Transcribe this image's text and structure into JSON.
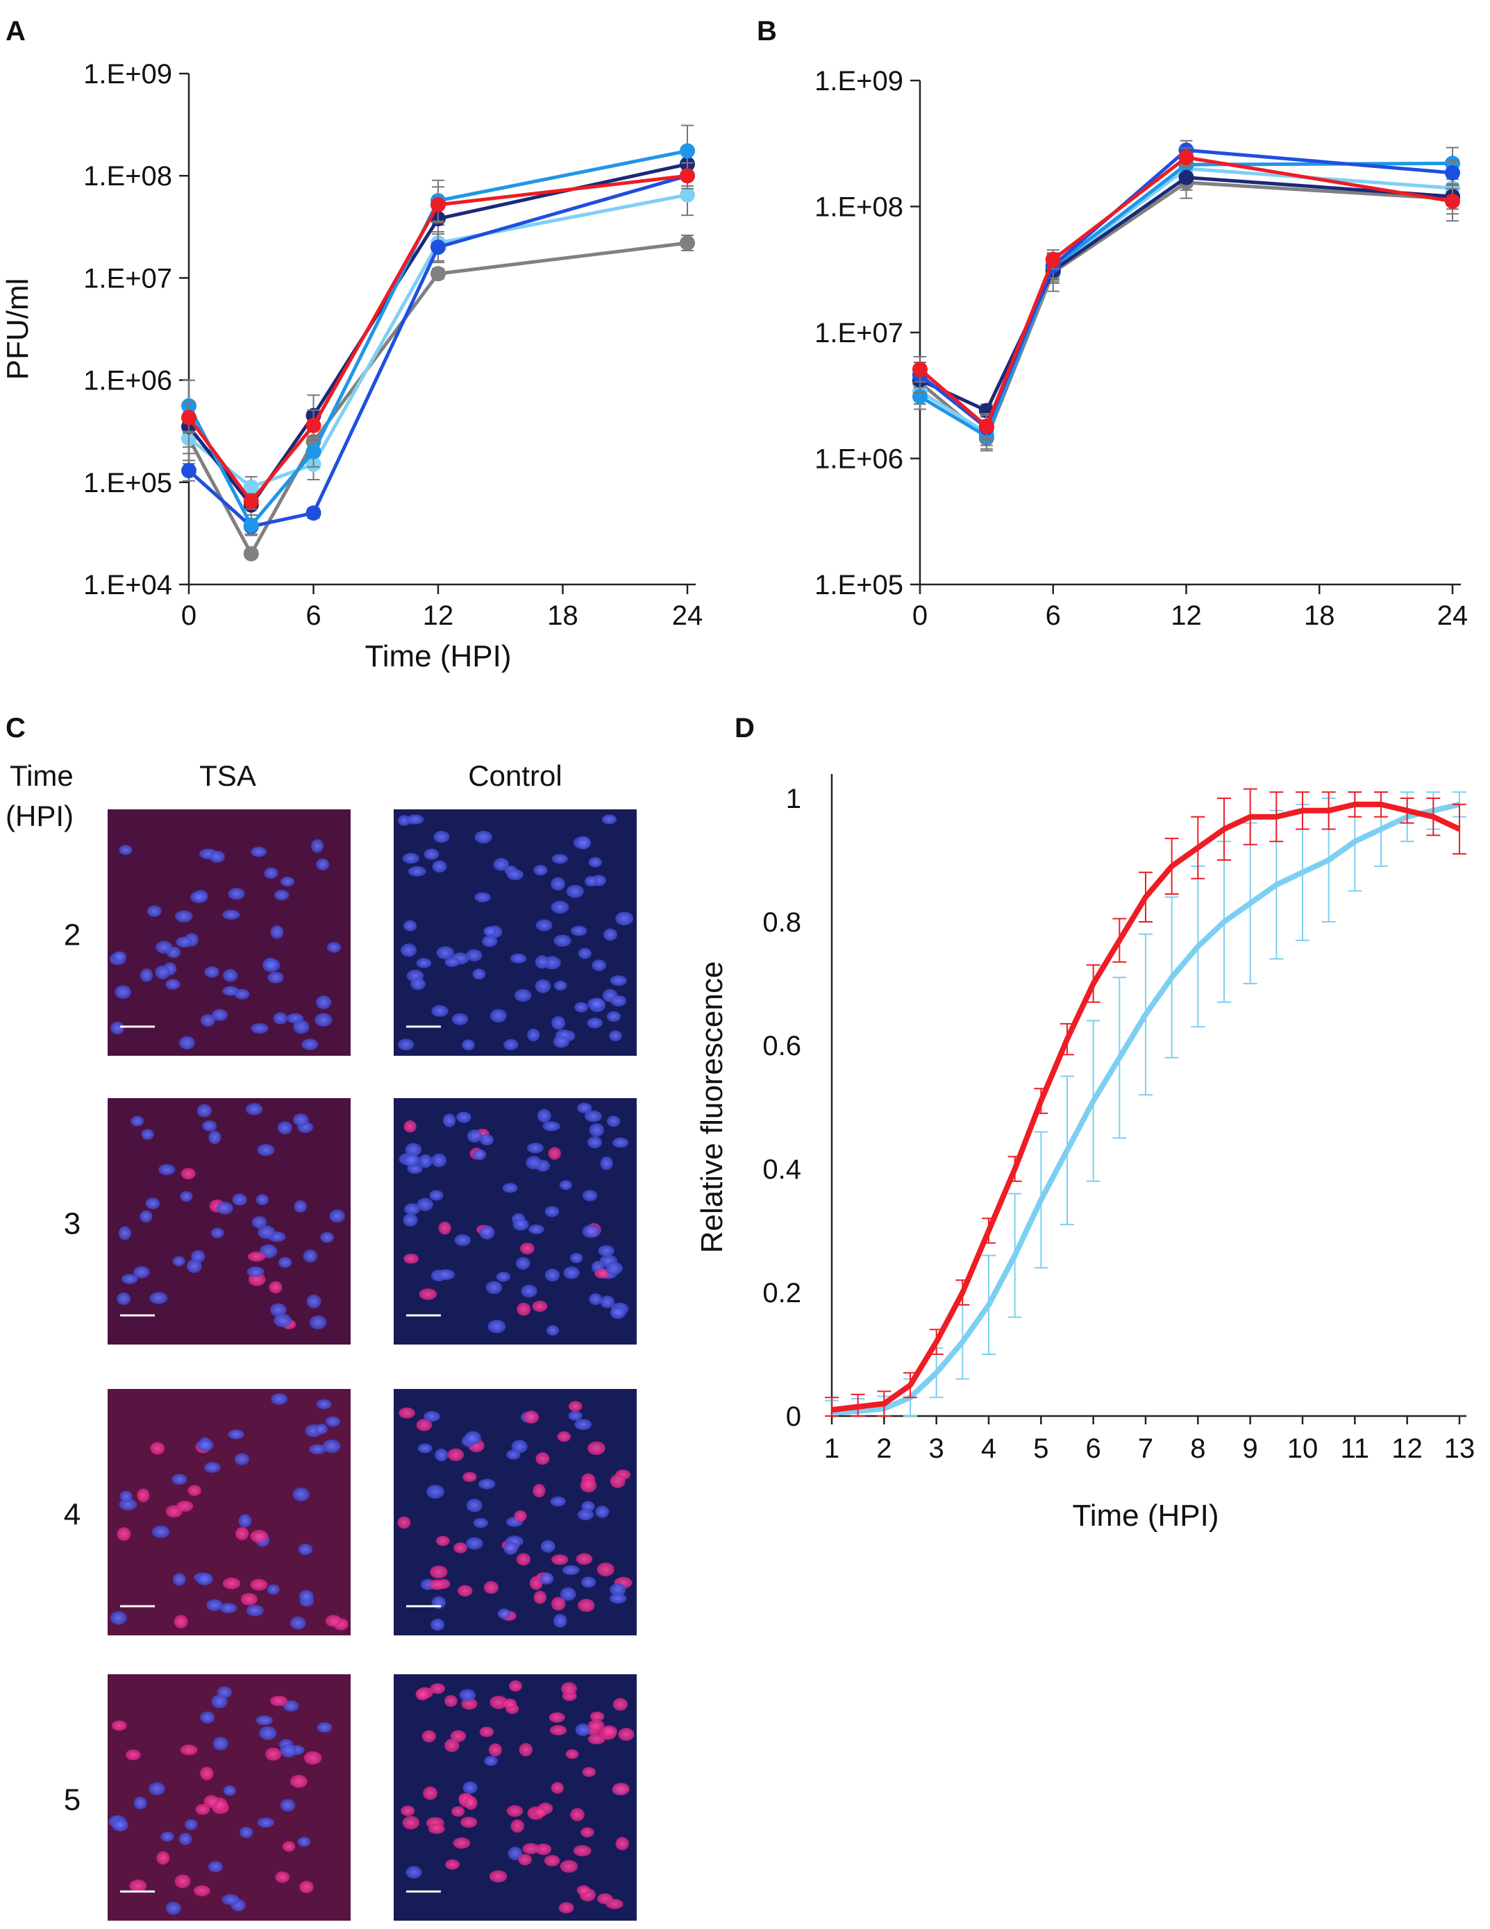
{
  "colors": {
    "red": "#ee1c24",
    "navy": "#1a2a78",
    "royal": "#1f4fe0",
    "sky": "#1f96e8",
    "light": "#7fd0f5",
    "gray": "#808080",
    "tsa_series": "#ee1c24",
    "control_series": "#7ccff2"
  },
  "panels": {
    "a": {
      "letter": "A"
    },
    "b": {
      "letter": "B"
    },
    "c": {
      "letter": "C"
    },
    "d": {
      "letter": "D"
    }
  },
  "micrographs": {
    "row_header": "Time",
    "row_header_units": "(HPI)",
    "col_tsa": "TSA",
    "col_control": "Control",
    "rows": [
      "2",
      "3",
      "4",
      "5"
    ],
    "red_fraction_tsa": [
      0.0,
      0.1,
      0.3,
      0.55
    ],
    "red_fraction_control": [
      0.0,
      0.2,
      0.6,
      0.85
    ]
  },
  "chart_data": [
    {
      "id": "A",
      "type": "line",
      "title": "",
      "xlabel": "Time (HPI)",
      "ylabel": "PFU/ml",
      "yscale": "log",
      "ylim": [
        10000,
        1000000000
      ],
      "xlim": [
        0,
        24
      ],
      "xticks": [
        "0",
        "6",
        "12",
        "18",
        "24"
      ],
      "yticks": [
        "1.E+04",
        "1.E+05",
        "1.E+06",
        "1.E+07",
        "1.E+08",
        "1.E+09"
      ],
      "x": [
        0,
        3,
        6,
        12,
        24
      ],
      "series": [
        {
          "name": "gray",
          "color": "#808080",
          "values": [
            270000,
            20000,
            250000,
            11000000,
            22000000
          ],
          "err": [
            0.3,
            0.08,
            0.45,
            0.1,
            0.15
          ]
        },
        {
          "name": "light blue",
          "color": "#7fd0f5",
          "values": [
            270000,
            90000,
            150000,
            22000000,
            65000000
          ],
          "err": [
            0.5,
            0.2,
            0.3,
            0.35,
            0.4
          ]
        },
        {
          "name": "royal blue",
          "color": "#1f4fe0",
          "values": [
            130000,
            37000,
            50000,
            20000000,
            100000000
          ],
          "err": [
            0.2,
            0.15,
            0.1,
            0.3,
            0.2
          ]
        },
        {
          "name": "navy",
          "color": "#1a2a78",
          "values": [
            350000,
            60000,
            450000,
            38000000,
            130000000
          ],
          "err": [
            0.4,
            0.2,
            0.4,
            0.3,
            0.3
          ]
        },
        {
          "name": "sky blue",
          "color": "#1f96e8",
          "values": [
            560000,
            38000,
            200000,
            57000000,
            175000000
          ],
          "err": [
            0.5,
            0.2,
            0.3,
            0.4,
            0.5
          ]
        },
        {
          "name": "red",
          "color": "#ee1c24",
          "values": [
            430000,
            65000,
            360000,
            52000000,
            100000000
          ],
          "err": [
            0.3,
            0.15,
            0.3,
            0.35,
            0.25
          ]
        }
      ]
    },
    {
      "id": "B",
      "type": "line",
      "title": "",
      "xlabel": "",
      "ylabel": "",
      "yscale": "log",
      "ylim": [
        100000,
        1000000000
      ],
      "xlim": [
        0,
        24
      ],
      "xticks": [
        "0",
        "6",
        "12",
        "18",
        "24"
      ],
      "yticks": [
        "1.E+05",
        "1.E+06",
        "1.E+07",
        "1.E+08",
        "1.E+09"
      ],
      "x": [
        0,
        3,
        6,
        12,
        24
      ],
      "series": [
        {
          "name": "gray",
          "color": "#808080",
          "values": [
            4000000,
            1450000,
            30000000,
            155000000,
            115000000
          ],
          "err": [
            0.25,
            0.2,
            0.3,
            0.25,
            0.35
          ]
        },
        {
          "name": "light blue",
          "color": "#7fd0f5",
          "values": [
            3400000,
            1600000,
            32000000,
            200000000,
            140000000
          ],
          "err": [
            0.2,
            0.2,
            0.2,
            0.2,
            0.25
          ]
        },
        {
          "name": "sky blue",
          "color": "#1f96e8",
          "values": [
            3100000,
            1500000,
            33000000,
            215000000,
            220000000
          ],
          "err": [
            0.2,
            0.2,
            0.2,
            0.2,
            0.25
          ]
        },
        {
          "name": "navy",
          "color": "#1a2a78",
          "values": [
            4200000,
            2400000,
            31000000,
            170000000,
            120000000
          ],
          "err": [
            0.2,
            0.1,
            0.2,
            0.2,
            0.2
          ]
        },
        {
          "name": "royal blue",
          "color": "#1f4fe0",
          "values": [
            4600000,
            1750000,
            34000000,
            280000000,
            185000000
          ],
          "err": [
            0.2,
            0.2,
            0.2,
            0.15,
            0.2
          ]
        },
        {
          "name": "red",
          "color": "#ee1c24",
          "values": [
            5100000,
            1800000,
            38000000,
            245000000,
            110000000
          ],
          "err": [
            0.2,
            0.2,
            0.15,
            0.15,
            0.2
          ]
        }
      ]
    },
    {
      "id": "D",
      "type": "line",
      "title": "",
      "xlabel": "Time (HPI)",
      "ylabel": "Relative fluorescence",
      "ylim": [
        0,
        1
      ],
      "xlim": [
        1,
        13
      ],
      "xticks": [
        "1",
        "2",
        "3",
        "4",
        "5",
        "6",
        "7",
        "8",
        "9",
        "10",
        "11",
        "12",
        "13"
      ],
      "yticks": [
        "0",
        "0.2",
        "0.4",
        "0.6",
        "0.8",
        "1"
      ],
      "series": [
        {
          "name": "TSA",
          "color": "#ee1c24",
          "x": [
            1,
            1.5,
            2,
            2.5,
            3,
            3.5,
            4,
            4.5,
            5,
            5.5,
            6,
            6.5,
            7,
            7.5,
            8,
            8.5,
            9,
            9.5,
            10,
            10.5,
            11,
            11.5,
            12,
            12.5,
            13
          ],
          "values": [
            0.01,
            0.015,
            0.02,
            0.05,
            0.12,
            0.2,
            0.3,
            0.4,
            0.51,
            0.61,
            0.7,
            0.77,
            0.84,
            0.89,
            0.92,
            0.95,
            0.97,
            0.97,
            0.98,
            0.98,
            0.99,
            0.99,
            0.98,
            0.97,
            0.95
          ],
          "err": [
            0.02,
            0.02,
            0.02,
            0.02,
            0.02,
            0.02,
            0.02,
            0.02,
            0.02,
            0.025,
            0.03,
            0.035,
            0.04,
            0.045,
            0.05,
            0.05,
            0.045,
            0.04,
            0.03,
            0.03,
            0.02,
            0.02,
            0.02,
            0.03,
            0.04
          ]
        },
        {
          "name": "Control",
          "color": "#7ccff2",
          "x": [
            1,
            1.5,
            2,
            2.5,
            3,
            3.5,
            4,
            4.5,
            5,
            5.5,
            6,
            6.5,
            7,
            7.5,
            8,
            8.5,
            9,
            9.5,
            10,
            10.5,
            11,
            11.5,
            12,
            12.5,
            13
          ],
          "values": [
            0.005,
            0.008,
            0.012,
            0.03,
            0.07,
            0.12,
            0.18,
            0.26,
            0.35,
            0.43,
            0.51,
            0.58,
            0.65,
            0.71,
            0.76,
            0.8,
            0.83,
            0.86,
            0.88,
            0.9,
            0.93,
            0.95,
            0.97,
            0.98,
            0.99
          ],
          "err": [
            0.02,
            0.02,
            0.02,
            0.03,
            0.04,
            0.06,
            0.08,
            0.1,
            0.11,
            0.12,
            0.13,
            0.13,
            0.13,
            0.13,
            0.13,
            0.13,
            0.13,
            0.12,
            0.11,
            0.1,
            0.08,
            0.06,
            0.04,
            0.03,
            0.02
          ]
        }
      ]
    }
  ]
}
